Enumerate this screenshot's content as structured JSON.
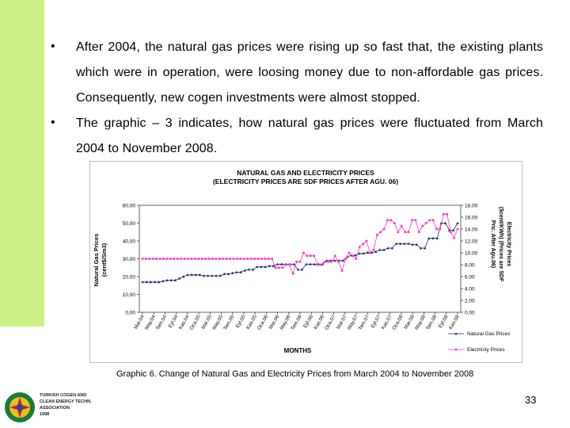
{
  "bullets": [
    {
      "symbol": "•",
      "text": "After 2004, the natural gas prices were rising up so fast that, the existing plants which were in operation, were loosing money due to non-affordable gas prices. Consequently, new cogen investments were almost stopped."
    },
    {
      "symbol": "•",
      "text": "The graphic – 3 indicates, how natural gas prices were fluctuated from March 2004 to November 2008."
    }
  ],
  "caption": "Graphic 6. Change of Natural Gas and Electricity Prices from March 2004 to November 2008",
  "page_number": "33",
  "logo_text": [
    "TURKISH COGEN AND",
    "CLEAN ENERGY TECHN.",
    "ASSOCIATION",
    "1998"
  ],
  "colors": {
    "gas": "#1f2a6b",
    "electricity": "#ff33cc",
    "accent_bar": "#ccf285"
  },
  "chart_data": {
    "type": "line",
    "title": [
      "NATURAL GAS AND ELECTRICITY PRICES",
      "(ELECTRICITY PRICES ARE SDF PRICES AFTER AGU. 06)"
    ],
    "xlabel": "MONTHS",
    "ylabel_left": [
      "Natural Gas Prices",
      "(cent$/Sm3)"
    ],
    "ylabel_right": [
      "Electricity Prices",
      "($cent/KWh) (Prices are SDF",
      "Pric. After Agu.06)"
    ],
    "ylim_left": [
      0,
      60
    ],
    "ylim_right": [
      0,
      18
    ],
    "yticks_left": [
      "0,00",
      "10,00",
      "20,00",
      "30,00",
      "40,00",
      "50,00",
      "60,00"
    ],
    "yticks_right": [
      "0.00",
      "2.00",
      "4.00",
      "6.00",
      "8.00",
      "10.00",
      "12.00",
      "14.00",
      "16.00",
      "18.00"
    ],
    "xticks": [
      "Mar.04",
      "May.04",
      "Tem.04",
      "Eyl.04",
      "Kas.04",
      "Oca.05",
      "Mar.05",
      "May.05",
      "Tem.05",
      "Eyl.05",
      "Kas.05",
      "Oca.06",
      "Mar.06",
      "May.06",
      "Tem.06",
      "Eyl.06",
      "Kas.06",
      "Oca.07",
      "Mar.07",
      "May.07",
      "Tem.07",
      "Eyl.07",
      "Kas.07",
      "Oca.08",
      "Mar.08",
      "May.08",
      "Tem.08",
      "Eyl.08",
      "Kas.08"
    ],
    "series": [
      {
        "name": "Natural Gas Prices",
        "axis": "left",
        "values": [
          17,
          17,
          17,
          17,
          17,
          17.5,
          18,
          18,
          18,
          19,
          20,
          21,
          21,
          21,
          21,
          20.5,
          20.5,
          20.5,
          20.5,
          20.5,
          21.5,
          21.5,
          22,
          22.5,
          22.5,
          23.5,
          24,
          24,
          25.5,
          25.5,
          25.5,
          26,
          26,
          27,
          27,
          27,
          27,
          27,
          24,
          24,
          27,
          27,
          27,
          27,
          27,
          29,
          29,
          29,
          29,
          29,
          31,
          32,
          32,
          33,
          33,
          33.5,
          33.5,
          34,
          35,
          35,
          36,
          36,
          38.5,
          38.5,
          38.5,
          38.5,
          38,
          38,
          36,
          36,
          41.5,
          41.5,
          41.5,
          50,
          50,
          46,
          46,
          50
        ]
      },
      {
        "name": "Electricity Prices",
        "axis": "right",
        "values": [
          9,
          9,
          9,
          9,
          9,
          9,
          9,
          9,
          9,
          9,
          9,
          9,
          9,
          9,
          9,
          9,
          9,
          9,
          9,
          9,
          9,
          9,
          9,
          9,
          9,
          9,
          9,
          9,
          9,
          9,
          9,
          9,
          9,
          9,
          9,
          9,
          9,
          9,
          7.5,
          7.5,
          7.5,
          8,
          8,
          6.5,
          8.5,
          8.5,
          10,
          9.5,
          9.5,
          9.5,
          8,
          8,
          8.5,
          8.5,
          8.5,
          9.5,
          8.5,
          7,
          9,
          10,
          9.5,
          9,
          11,
          11.5,
          12,
          10,
          10.5,
          13,
          13.5,
          14,
          15.5,
          15.5,
          15,
          13.5,
          14.5,
          13.5,
          13.5,
          15.5,
          15.5,
          13.5,
          14.5,
          15,
          15.5,
          15.5,
          14,
          14,
          16.5,
          16.5,
          13.5,
          12.5,
          14
        ]
      }
    ],
    "legend_position": "right"
  }
}
